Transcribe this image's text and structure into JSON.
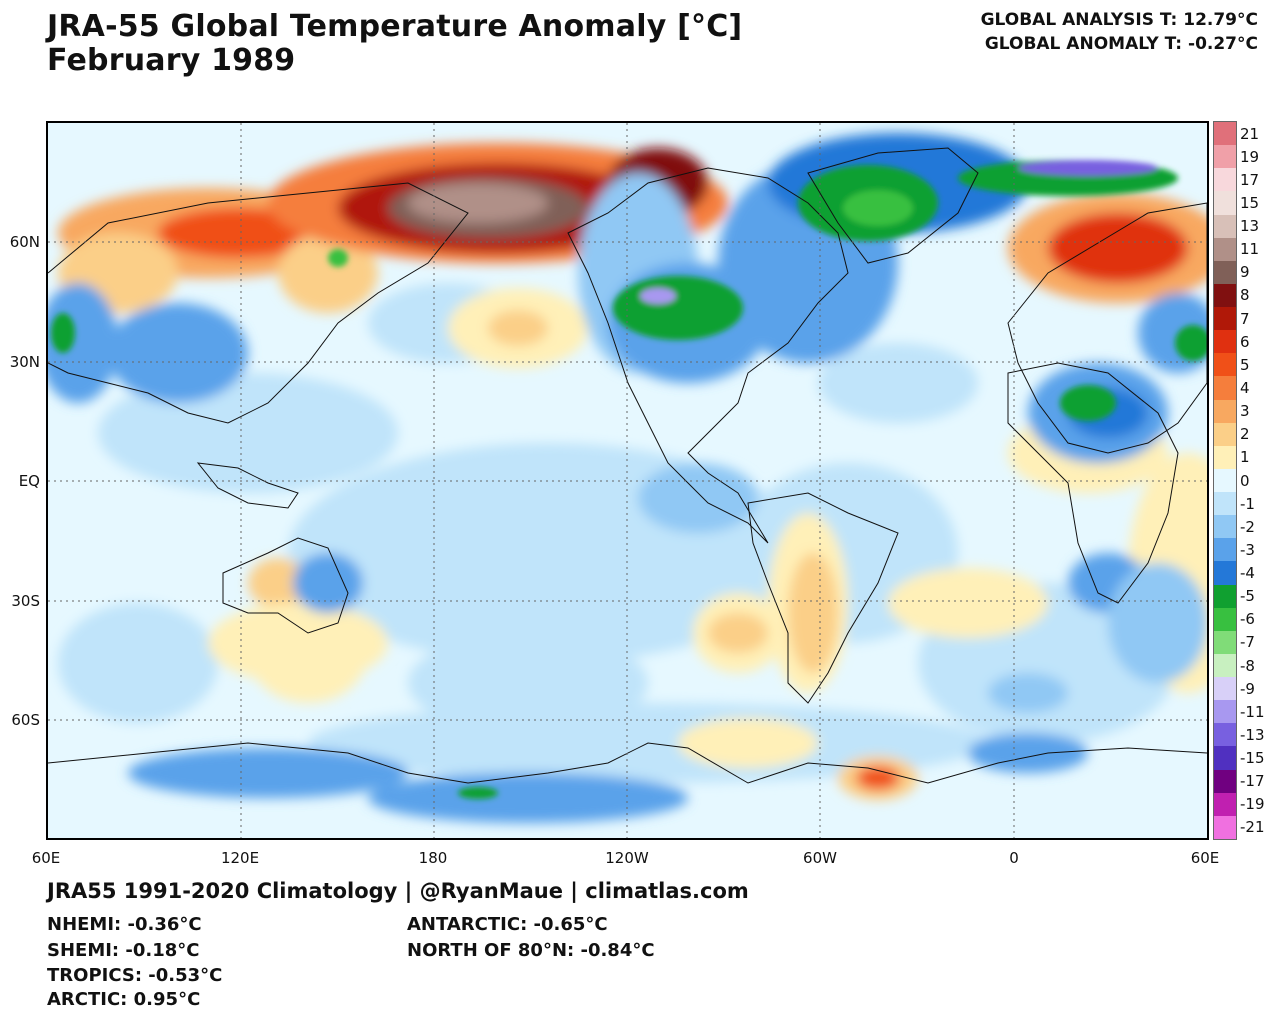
{
  "header": {
    "title_line1": "JRA-55 Global Temperature Anomaly [°C]",
    "title_line2": "February 1989",
    "global_analysis": "GLOBAL ANALYSIS T: 12.79°C",
    "global_anomaly": "GLOBAL ANOMALY T: -0.27°C"
  },
  "axes": {
    "lat_labels": [
      "60N",
      "30N",
      "EQ",
      "30S",
      "60S"
    ],
    "lon_labels": [
      "60E",
      "120E",
      "180",
      "120W",
      "60W",
      "0",
      "60E"
    ]
  },
  "colorbar": {
    "labels": [
      "21",
      "19",
      "17",
      "15",
      "13",
      "11",
      "9",
      "8",
      "7",
      "6",
      "5",
      "4",
      "3",
      "2",
      "1",
      "0",
      "-1",
      "-2",
      "-3",
      "-4",
      "-5",
      "-6",
      "-7",
      "-8",
      "-9",
      "-11",
      "-13",
      "-15",
      "-17",
      "-19",
      "-21"
    ],
    "colors": [
      "#e0707a",
      "#f0a0a8",
      "#f8d8dc",
      "#f0e0dc",
      "#d8c0b8",
      "#b09088",
      "#806058",
      "#801010",
      "#b01808",
      "#e03010",
      "#f05018",
      "#f57e3c",
      "#f8a860",
      "#fbcf88",
      "#fff0b8",
      "#e6f8ff",
      "#c0e4fa",
      "#90c8f4",
      "#5aa2ea",
      "#2478d8",
      "#10a030",
      "#38c040",
      "#80dc78",
      "#c8f0c0",
      "#d8d0f8",
      "#a898f0",
      "#7860e0",
      "#5030c0",
      "#700080",
      "#c020b0",
      "#f070e0"
    ]
  },
  "footer": {
    "credit": "JRA55 1991-2020 Climatology | @RyanMaue | climatlas.com",
    "nhemi": "NHEMI: -0.36°C",
    "shemi": "SHEMI: -0.18°C",
    "tropics": "TROPICS: -0.53°C",
    "arctic": "ARCTIC: 0.95°C",
    "antarctic": "ANTARCTIC: -0.65°C",
    "north_of_80": "NORTH OF 80°N: -0.84°C"
  }
}
